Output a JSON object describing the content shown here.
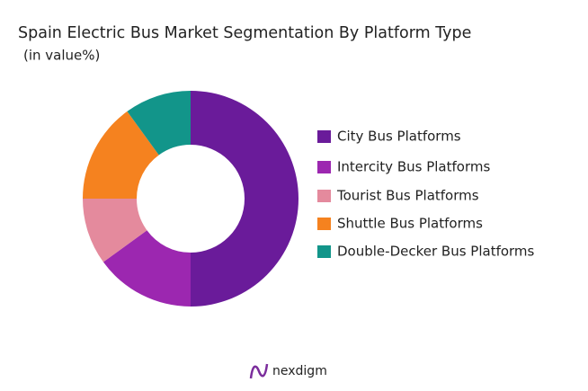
{
  "chart_data": {
    "type": "donut",
    "title": "Spain Electric Bus Market Segmentation By Platform Type",
    "subtitle": "(in value%)",
    "categories": [
      "City Bus Platforms",
      "Intercity Bus Platforms",
      "Tourist Bus Platforms",
      "Shuttle Bus Platforms",
      "Double-Decker Bus Platforms"
    ],
    "values": [
      50,
      15,
      10,
      15,
      10
    ],
    "colors": [
      "#6a1b9a",
      "#9c27b0",
      "#e48a9d",
      "#f5821f",
      "#12958a"
    ],
    "legend": "right"
  },
  "footer": {
    "brand": "nexdigm"
  }
}
